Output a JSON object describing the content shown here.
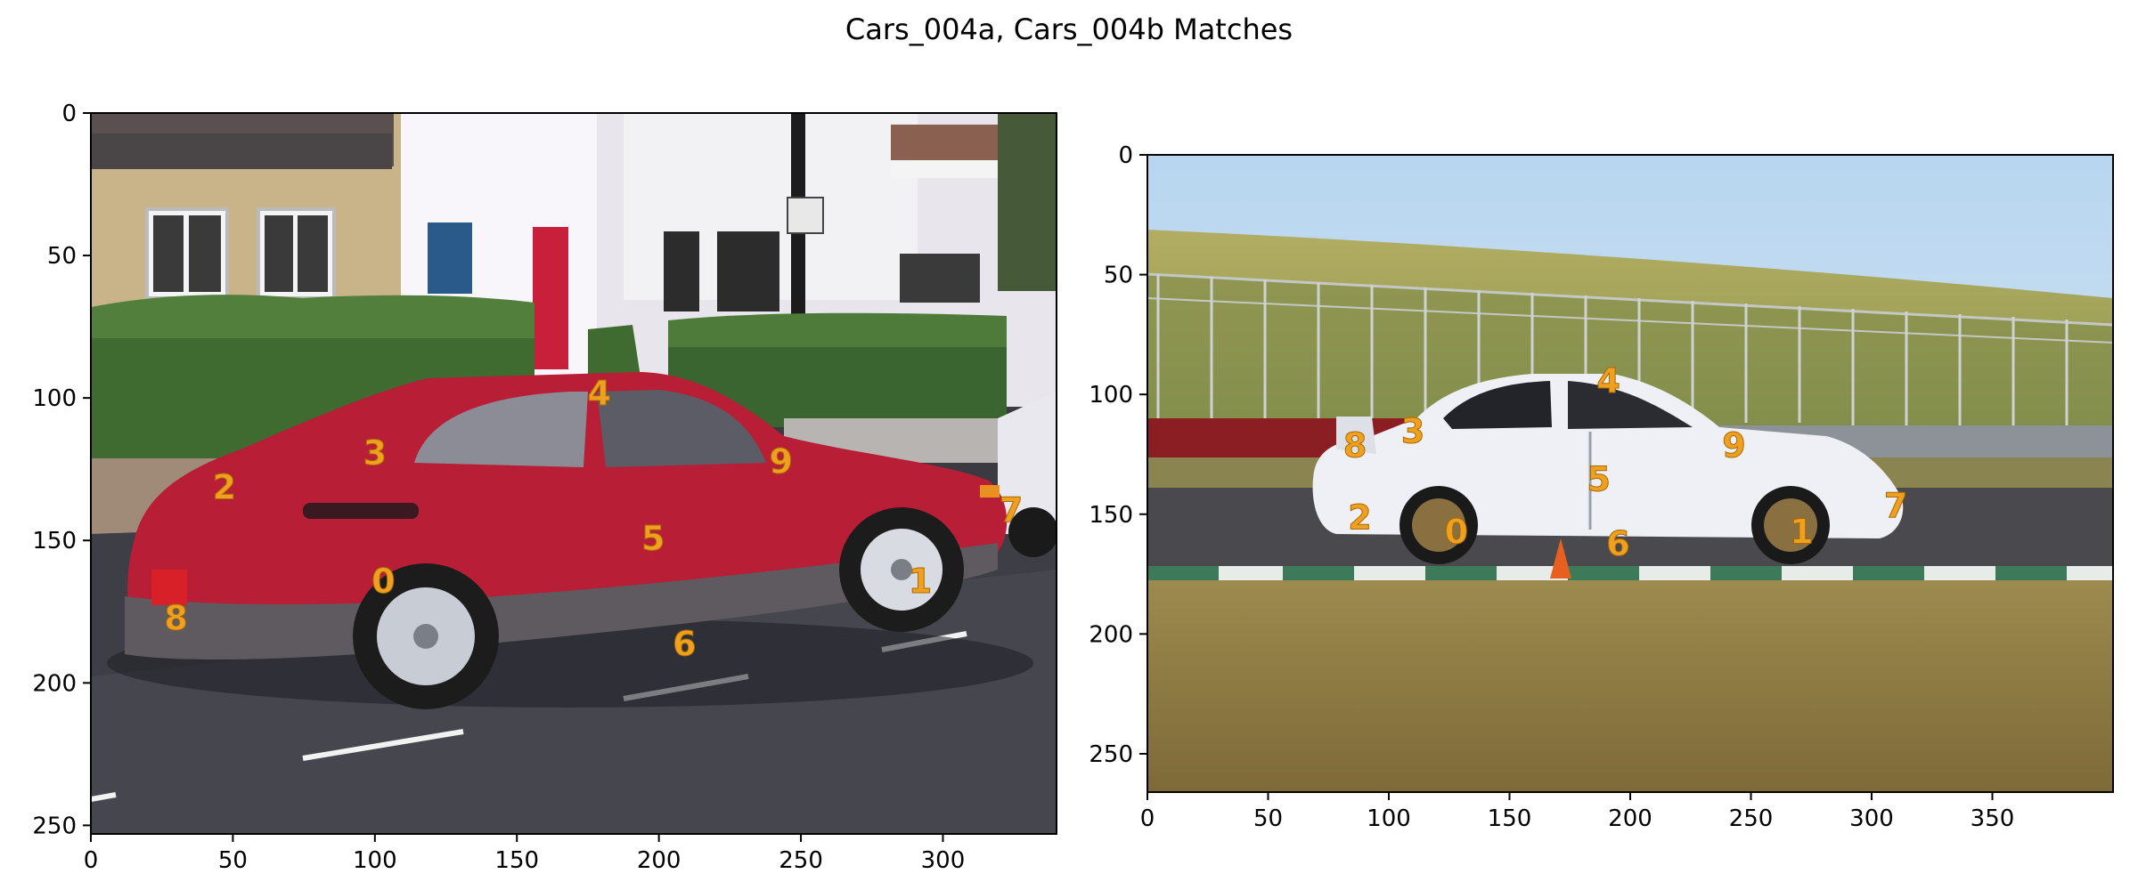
{
  "title": "Cars_004a, Cars_004b Matches",
  "colors": {
    "keypoint_label": "#f0a020",
    "axis": "#000000",
    "background": "#ffffff"
  },
  "chart_data": [
    {
      "type": "scatter",
      "image_name": "Cars_004a",
      "xlim": [
        0,
        340
      ],
      "ylim": [
        253,
        0
      ],
      "xticks": [
        0,
        50,
        100,
        150,
        200,
        250,
        300
      ],
      "yticks": [
        0,
        50,
        100,
        150,
        200,
        250
      ],
      "grid": false,
      "points": [
        {
          "label": "0",
          "x": 103,
          "y": 164
        },
        {
          "label": "1",
          "x": 292,
          "y": 164
        },
        {
          "label": "2",
          "x": 47,
          "y": 131
        },
        {
          "label": "3",
          "x": 100,
          "y": 119
        },
        {
          "label": "4",
          "x": 179,
          "y": 98
        },
        {
          "label": "5",
          "x": 198,
          "y": 149
        },
        {
          "label": "6",
          "x": 209,
          "y": 186
        },
        {
          "label": "7",
          "x": 324,
          "y": 139
        },
        {
          "label": "8",
          "x": 30,
          "y": 177
        },
        {
          "label": "9",
          "x": 243,
          "y": 122
        }
      ]
    },
    {
      "type": "scatter",
      "image_name": "Cars_004b",
      "xlim": [
        0,
        400
      ],
      "ylim": [
        266,
        0
      ],
      "xticks": [
        0,
        50,
        100,
        150,
        200,
        250,
        300,
        350
      ],
      "yticks": [
        0,
        50,
        100,
        150,
        200,
        250
      ],
      "grid": false,
      "points": [
        {
          "label": "0",
          "x": 128,
          "y": 157
        },
        {
          "label": "1",
          "x": 271,
          "y": 157
        },
        {
          "label": "2",
          "x": 88,
          "y": 151
        },
        {
          "label": "3",
          "x": 110,
          "y": 115
        },
        {
          "label": "4",
          "x": 191,
          "y": 94
        },
        {
          "label": "5",
          "x": 187,
          "y": 135
        },
        {
          "label": "6",
          "x": 195,
          "y": 162
        },
        {
          "label": "7",
          "x": 310,
          "y": 146
        },
        {
          "label": "8",
          "x": 86,
          "y": 121
        },
        {
          "label": "9",
          "x": 243,
          "y": 121
        }
      ]
    }
  ]
}
